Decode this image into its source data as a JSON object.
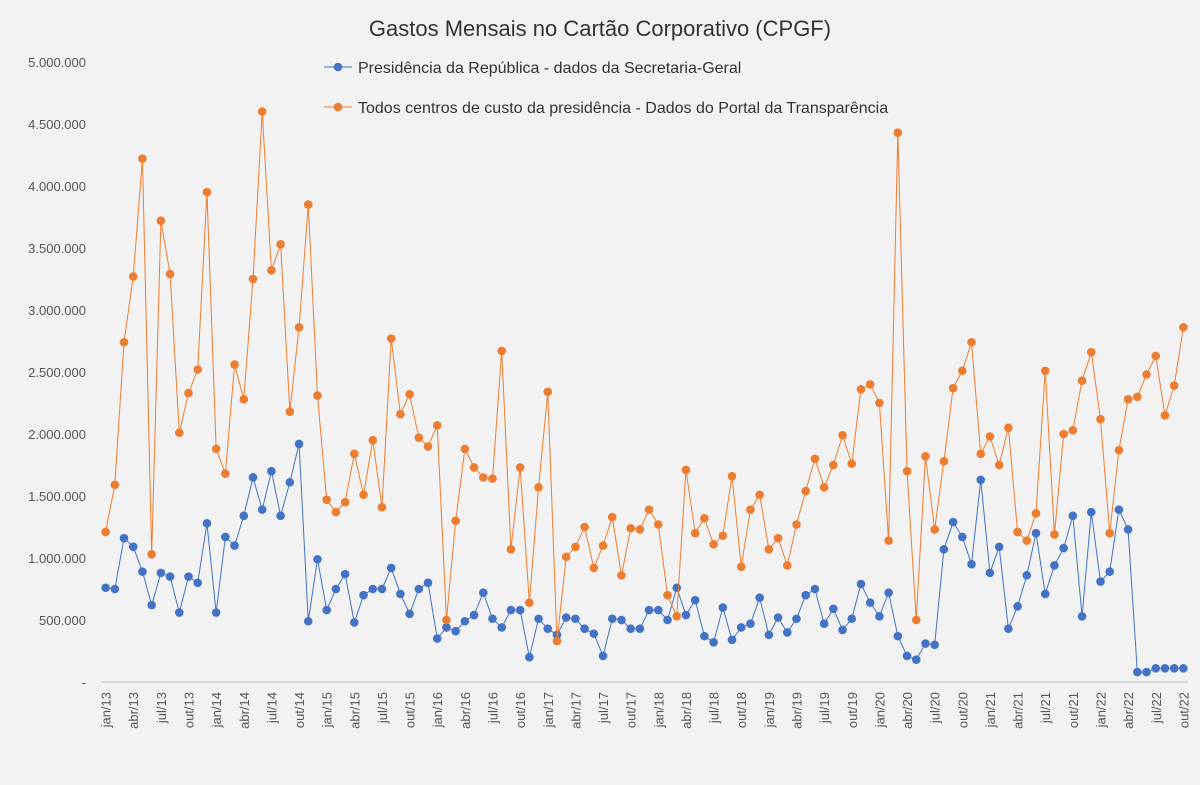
{
  "chart_data": {
    "type": "line",
    "title": "Gastos Mensais no Cartão Corporativo (CPGF)",
    "xlabel": "",
    "ylabel": "",
    "ylim": [
      0,
      5000000
    ],
    "yticks": [
      0,
      500000,
      1000000,
      1500000,
      2000000,
      2500000,
      3000000,
      3500000,
      4000000,
      4500000,
      5000000
    ],
    "ytick_labels": [
      "-",
      "500.000",
      "1.000.000",
      "1.500.000",
      "2.000.000",
      "2.500.000",
      "3.000.000",
      "3.500.000",
      "4.000.000",
      "4.500.000",
      "5.000.000"
    ],
    "x_tick_labels": [
      "jan/13",
      "abr/13",
      "jul/13",
      "out/13",
      "jan/14",
      "abr/14",
      "jul/14",
      "out/14",
      "jan/15",
      "abr/15",
      "jul/15",
      "out/15",
      "jan/16",
      "abr/16",
      "jul/16",
      "out/16",
      "jan/17",
      "abr/17",
      "jul/17",
      "out/17",
      "jan/18",
      "abr/18",
      "jul/18",
      "out/18",
      "jan/19",
      "abr/19",
      "jul/19",
      "out/19",
      "jan/20",
      "abr/20",
      "jul/20",
      "out/20",
      "jan/21",
      "abr/21",
      "jul/21",
      "out/21",
      "jan/22",
      "abr/22",
      "jul/22",
      "out/22"
    ],
    "x_tick_every_months": 3,
    "legend_position": "top-center",
    "series": [
      {
        "name": "Presidência da República - dados da Secretaria-Geral",
        "color": "#4472c4",
        "values": [
          760000,
          750000,
          1160000,
          1090000,
          890000,
          620000,
          880000,
          850000,
          560000,
          850000,
          800000,
          1280000,
          560000,
          1170000,
          1100000,
          1340000,
          1650000,
          1390000,
          1700000,
          1340000,
          1610000,
          1920000,
          490000,
          990000,
          580000,
          750000,
          870000,
          480000,
          700000,
          750000,
          750000,
          920000,
          710000,
          550000,
          750000,
          800000,
          350000,
          440000,
          410000,
          490000,
          540000,
          720000,
          510000,
          440000,
          580000,
          580000,
          200000,
          510000,
          430000,
          380000,
          520000,
          510000,
          430000,
          390000,
          210000,
          510000,
          500000,
          430000,
          430000,
          580000,
          580000,
          500000,
          760000,
          540000,
          660000,
          370000,
          320000,
          600000,
          340000,
          440000,
          470000,
          680000,
          380000,
          520000,
          400000,
          510000,
          700000,
          750000,
          470000,
          590000,
          420000,
          510000,
          790000,
          640000,
          530000,
          720000,
          370000,
          210000,
          180000,
          310000,
          300000,
          1070000,
          1290000,
          1170000,
          950000,
          1630000,
          880000,
          1090000,
          430000,
          610000,
          860000,
          1200000,
          710000,
          940000,
          1080000,
          1340000,
          530000,
          1370000,
          810000,
          890000,
          1390000,
          1230000,
          80000,
          80000,
          110000,
          110000,
          110000,
          110000
        ],
        "start_index": 0
      },
      {
        "name": "Todos centros de custo da presidência - Dados do Portal da Transparência",
        "color": "#ed7d31",
        "values": [
          1210000,
          1590000,
          2740000,
          3270000,
          4220000,
          1030000,
          3720000,
          3290000,
          2010000,
          2330000,
          2520000,
          3950000,
          1880000,
          1680000,
          2560000,
          2280000,
          3250000,
          4600000,
          3320000,
          3530000,
          2180000,
          2860000,
          3850000,
          2310000,
          1470000,
          1370000,
          1450000,
          1840000,
          1510000,
          1950000,
          1410000,
          2770000,
          2160000,
          2320000,
          1970000,
          1900000,
          2070000,
          500000,
          1300000,
          1880000,
          1730000,
          1650000,
          1640000,
          2670000,
          1070000,
          1730000,
          640000,
          1570000,
          2340000,
          330000,
          1010000,
          1090000,
          1250000,
          920000,
          1100000,
          1330000,
          860000,
          1240000,
          1230000,
          1390000,
          1270000,
          700000,
          530000,
          1710000,
          1200000,
          1320000,
          1110000,
          1180000,
          1660000,
          930000,
          1390000,
          1510000,
          1070000,
          1160000,
          940000,
          1270000,
          1540000,
          1800000,
          1570000,
          1750000,
          1990000,
          1760000,
          2360000,
          2400000,
          2250000,
          1140000,
          4430000,
          1700000,
          500000,
          1820000,
          1230000,
          1780000,
          2370000,
          2510000,
          2740000,
          1840000,
          1980000,
          1750000,
          2050000,
          1210000,
          1140000,
          1360000,
          2510000,
          1190000,
          2000000,
          2030000,
          2430000,
          2660000,
          2120000,
          1200000,
          1870000,
          2280000,
          2300000,
          2480000,
          2630000,
          2150000,
          2390000,
          2860000
        ],
        "start_index": 0
      }
    ]
  }
}
